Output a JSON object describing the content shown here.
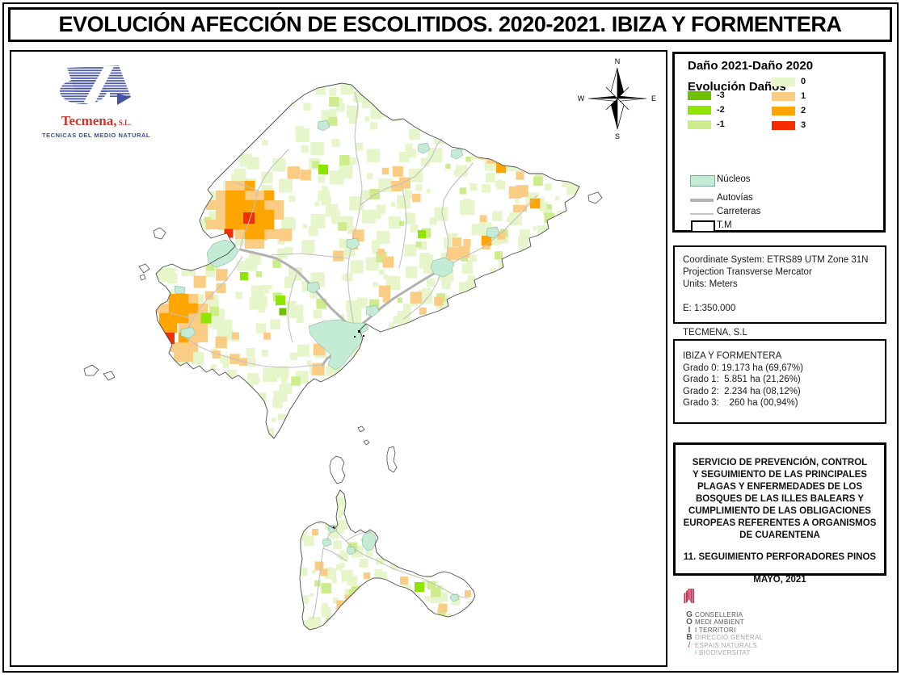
{
  "page": {
    "title": "EVOLUCIÓN AFECCIÓN DE ESCOLITIDOS. 2020-2021. IBIZA Y FORMENTERA"
  },
  "tecmena_logo": {
    "name": "Tecmena,",
    "suffix": " S.L.",
    "tagline": "TECNICAS DEL MEDIO NATURAL"
  },
  "compass": {
    "north": "N",
    "south": "S",
    "east": "E",
    "west": "W"
  },
  "legend": {
    "title": "Daño 2021-Daño 2020",
    "subtitle": "Evolución Daños",
    "negative_classes": [
      {
        "label": "-3",
        "color": "#6FC100"
      },
      {
        "label": "-2",
        "color": "#8EE500"
      },
      {
        "label": "-1",
        "color": "#CDEC8B"
      }
    ],
    "positive_classes": [
      {
        "label": "0",
        "color": "#E7F5CA"
      },
      {
        "label": "1",
        "color": "#FACC84"
      },
      {
        "label": "2",
        "color": "#FFA502"
      },
      {
        "label": "3",
        "color": "#F42D00"
      }
    ],
    "overlays": [
      {
        "label": "Núcleos",
        "type": "patch",
        "color": "#C3EBD6",
        "border": "#78AD92"
      },
      {
        "label": "Autovías",
        "type": "thick-line",
        "color": "#B3B3B3"
      },
      {
        "label": "Carreteras",
        "type": "thin-line",
        "color": "#C4C4C4"
      },
      {
        "label": "T.M",
        "type": "outline",
        "color": "#FFFFFF",
        "border": "#000000"
      }
    ]
  },
  "info_box": {
    "lines": [
      "Coordinate System: ETRS89 UTM Zone 31N",
      "Projection Transverse Mercator",
      "Units: Meters",
      "",
      "E: 1:350.000",
      "",
      "TECMENA, S.L"
    ]
  },
  "stats_box": {
    "title": "IBIZA Y FORMENTERA",
    "lines": [
      "Grado 0: 19.173 ha (69,67%)",
      "Grado 1:  5.851 ha (21,26%)",
      "Grado 2:  2.234 ha (08,12%)",
      "Grado 3:    260 ha (00,94%)"
    ]
  },
  "service_box": {
    "paragraph": [
      "SERVICIO DE PREVENCIÓN, CONTROL",
      "Y SEGUIMIENTO DE LAS PRINCIPALES",
      "PLAGAS Y ENFERMEDADES DE LOS",
      "BOSQUES DE LAS ILLES BALEARS Y",
      "CUMPLIMIENTO DE LAS OBLIGACIONES",
      "EUROPEAS REFERENTES A ORGANISMOS",
      "DE CUARENTENA"
    ],
    "subtitle": "11. SEGUIMIENTO PERFORADORES PINOS",
    "date": "MAYO, 2021"
  },
  "goib": {
    "accent": "#C2264B",
    "rows": [
      {
        "letter": "G",
        "text": "CONSELLERIA",
        "muted": false
      },
      {
        "letter": "O",
        "text": "MEDI AMBIENT",
        "muted": false
      },
      {
        "letter": "I",
        "text": "I TERRITORI",
        "muted": false
      },
      {
        "letter": "B",
        "text": "DIRECCIÓ GENERAL",
        "muted": true
      },
      {
        "letter": "/",
        "text": "ESPAIS NATURALS",
        "muted": true
      },
      {
        "letter": "",
        "text": "I BIODIVERSITAT",
        "muted": true
      }
    ]
  },
  "map": {
    "water_color": "#FFFFFF",
    "coast_color": "#4D4D4D",
    "autovia_color": "#B2B2B2",
    "carretera_color": "#C0C0C0"
  }
}
